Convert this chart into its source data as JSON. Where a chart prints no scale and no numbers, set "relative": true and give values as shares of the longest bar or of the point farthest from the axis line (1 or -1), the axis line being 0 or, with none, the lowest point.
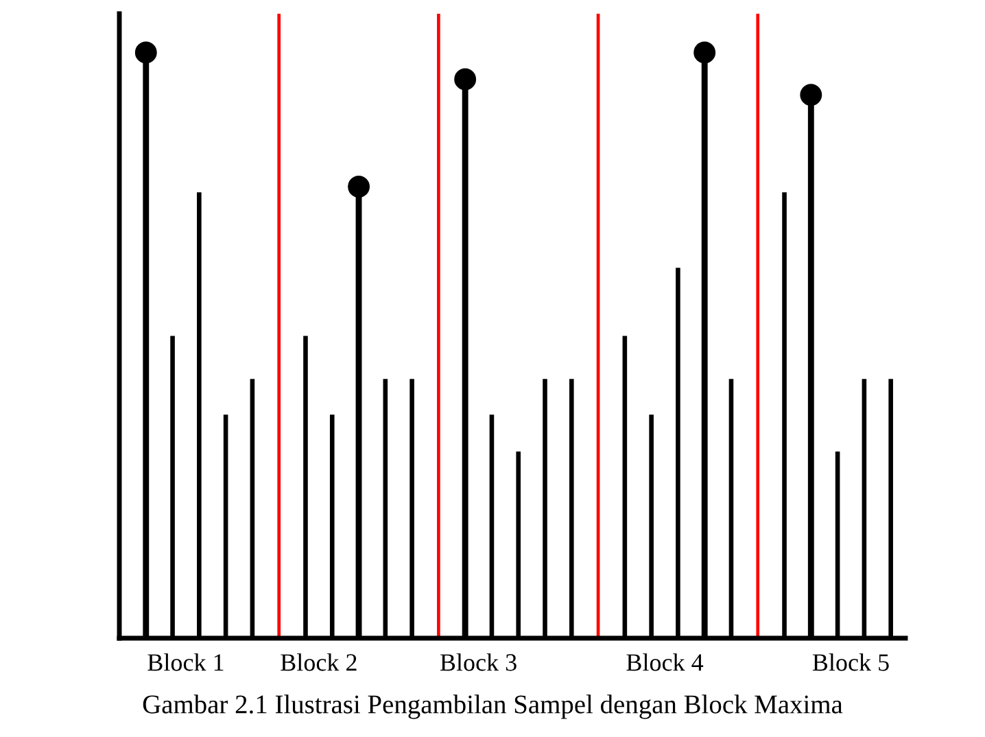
{
  "chart_data": {
    "type": "bar",
    "relative": true,
    "tick_labels": "x",
    "categories": [
      null,
      null,
      null,
      "Block 1",
      null,
      null,
      null,
      null,
      null,
      null,
      null,
      null,
      null,
      "Block 2",
      null,
      null,
      null,
      null,
      null,
      null,
      null,
      null,
      null,
      null,
      null,
      "Block 3",
      null,
      null,
      null,
      null,
      null,
      null,
      null,
      null,
      null,
      null,
      null,
      null,
      null,
      "Block 4",
      null,
      null,
      null,
      null,
      null,
      null,
      null,
      null,
      null,
      null,
      null,
      null,
      null,
      "Block 5",
      null,
      null,
      null
    ],
    "series": [
      {
        "color": "#000000",
        "values": [
          null,
          null,
          0.484,
          null,
          0.714,
          null,
          0.358,
          null,
          0.415,
          null,
          null,
          null,
          0.484,
          null,
          0.358,
          null,
          null,
          null,
          0.415,
          null,
          0.415,
          null,
          null,
          null,
          null,
          null,
          0.358,
          null,
          0.299,
          null,
          0.415,
          null,
          0.415,
          null,
          null,
          null,
          0.484,
          null,
          0.358,
          null,
          0.593,
          null,
          null,
          null,
          0.415,
          null,
          null,
          null,
          0.714,
          null,
          null,
          null,
          0.299,
          null,
          0.415,
          null,
          0.415
        ]
      },
      {
        "color": "#ff0000",
        "values": [
          null,
          null,
          null,
          null,
          null,
          null,
          null,
          null,
          null,
          null,
          1,
          null,
          null,
          null,
          null,
          null,
          null,
          null,
          null,
          null,
          null,
          null,
          1,
          null,
          null,
          null,
          null,
          null,
          null,
          null,
          null,
          null,
          null,
          null,
          1,
          null,
          null,
          null,
          null,
          null,
          null,
          null,
          null,
          null,
          null,
          null,
          1,
          null,
          null,
          null,
          null,
          null,
          null,
          null,
          null,
          null,
          null
        ]
      },
      {
        "type": "lollipop",
        "color": "#000000",
        "marker": "circle",
        "values": [
          0.938,
          null,
          null,
          null,
          null,
          null,
          null,
          null,
          null,
          null,
          null,
          null,
          null,
          null,
          null,
          null,
          0.723,
          null,
          null,
          null,
          null,
          null,
          null,
          null,
          0.895,
          null,
          null,
          null,
          null,
          null,
          null,
          null,
          null,
          null,
          null,
          null,
          null,
          null,
          null,
          null,
          null,
          null,
          0.938,
          null,
          null,
          null,
          null,
          null,
          null,
          null,
          0.87,
          null,
          null,
          null,
          null,
          null,
          null
        ]
      }
    ],
    "annotations": [
      "Gambar 2.1 Ilustrasi Pengambilan Sampel dengan Block Maxima"
    ]
  }
}
